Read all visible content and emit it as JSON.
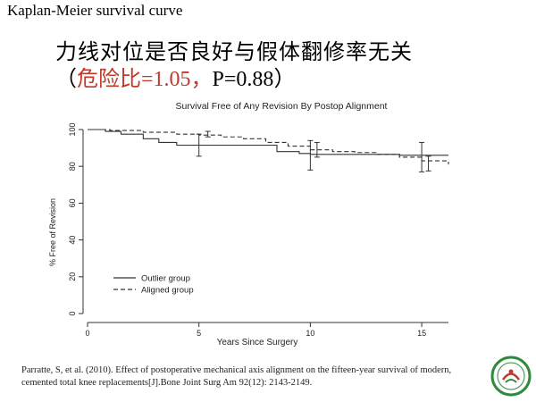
{
  "slide": {
    "title": "Kaplan-Meier survival curve",
    "headline": "力线对位是否良好与假体翻修率无关",
    "stats_open": "（",
    "stats_red": "危险比=1.05，",
    "stats_rest": "P=0.88",
    "stats_close": "）",
    "citation": "Parratte, S, et al. (2010). Effect of postoperative mechanical axis alignment on the fifteen-year survival of modern, cemented total knee replacements[J].Bone Joint Surg Am 92(12): 2143-2149."
  },
  "colors": {
    "stats_accent": "#c0392b",
    "logo_green": "#2e8b3a",
    "logo_red": "#c0392b"
  },
  "chart_data": {
    "type": "line",
    "title": "Survival Free of  Any Revision By Postop Alignment",
    "xlabel": "Years Since Surgery",
    "ylabel": "% Free of Revision",
    "xlim": [
      0,
      16.2
    ],
    "ylim": [
      0,
      100
    ],
    "x_ticks": [
      0,
      5,
      10,
      15
    ],
    "y_ticks": [
      0,
      20,
      40,
      60,
      80,
      100
    ],
    "legend_position": "bottom-left",
    "series": [
      {
        "name": "Outlier group",
        "style": "solid",
        "points": [
          [
            0,
            100
          ],
          [
            0.8,
            99
          ],
          [
            1.5,
            97.5
          ],
          [
            2.5,
            95
          ],
          [
            3.2,
            93
          ],
          [
            4,
            91.5
          ],
          [
            5,
            91.5
          ],
          [
            7.5,
            91.5
          ],
          [
            8.5,
            88
          ],
          [
            9.5,
            87
          ],
          [
            10,
            86.5
          ],
          [
            11,
            86.5
          ],
          [
            14,
            86
          ],
          [
            16.2,
            86
          ]
        ],
        "error_bars": [
          [
            5,
            91.5,
            6
          ],
          [
            10,
            86,
            8
          ],
          [
            15,
            85,
            8
          ]
        ]
      },
      {
        "name": "Aligned group",
        "style": "dashed",
        "points": [
          [
            0,
            100
          ],
          [
            1,
            99.5
          ],
          [
            2.5,
            98.5
          ],
          [
            4,
            97.5
          ],
          [
            5,
            97
          ],
          [
            6,
            96
          ],
          [
            7,
            95
          ],
          [
            8,
            93
          ],
          [
            9,
            91
          ],
          [
            10,
            89
          ],
          [
            11,
            88
          ],
          [
            12,
            87.5
          ],
          [
            13,
            86.5
          ],
          [
            14,
            85
          ],
          [
            15,
            83
          ],
          [
            16.2,
            81
          ]
        ],
        "error_bars": [
          [
            5.4,
            97.5,
            1.5
          ],
          [
            10.3,
            89,
            4
          ],
          [
            15.3,
            81.5,
            4
          ]
        ]
      }
    ]
  }
}
